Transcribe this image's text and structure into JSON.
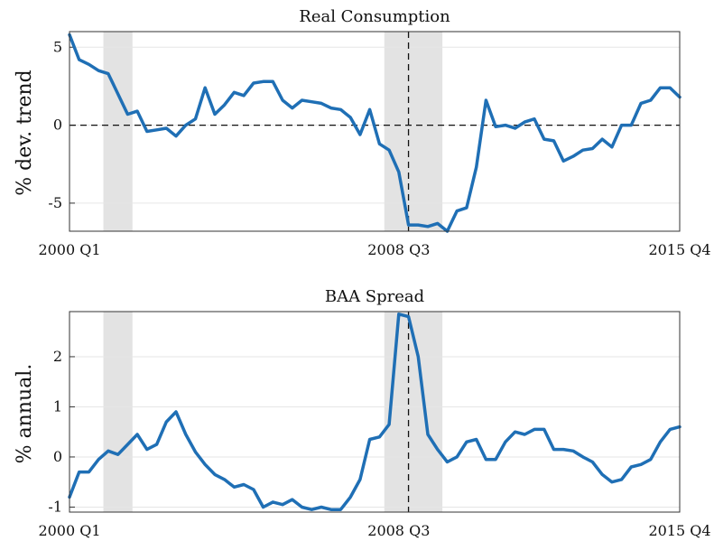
{
  "chart_data": [
    {
      "type": "line",
      "title": "Real Consumption",
      "ylabel": "% dev. trend",
      "xlabel": "",
      "x_tick_labels": [
        "2000 Q1",
        "2008 Q3",
        "2015 Q4"
      ],
      "x_tick_positions": [
        0,
        34,
        63
      ],
      "ylim": [
        -6.8,
        6.0
      ],
      "yticks": [
        -5,
        0,
        5
      ],
      "recession_bands": [
        [
          3.5,
          6.5
        ],
        [
          32.5,
          38.5
        ]
      ],
      "event_line": 35,
      "zero_line": true,
      "grid": "horizontal",
      "color": "#1f6fb5",
      "series": [
        {
          "x": [
            0,
            1,
            2,
            3,
            4,
            5,
            6,
            7,
            8,
            9,
            10,
            11,
            12,
            13,
            14,
            15,
            16,
            17,
            18,
            19,
            20,
            21,
            22,
            23,
            24,
            25,
            26,
            27,
            28,
            29,
            30,
            31,
            32,
            33,
            34,
            35,
            36,
            37,
            38,
            39,
            40,
            41,
            42,
            43,
            44,
            45,
            46,
            47,
            48,
            49,
            50,
            51,
            52,
            53,
            54,
            55,
            56,
            57,
            58,
            59,
            60,
            61,
            62,
            63
          ],
          "values": [
            5.8,
            4.2,
            3.9,
            3.5,
            3.3,
            2.0,
            0.7,
            0.9,
            -0.4,
            -0.3,
            -0.2,
            -0.7,
            0.0,
            0.4,
            2.4,
            0.7,
            1.3,
            2.1,
            1.9,
            2.7,
            2.8,
            2.8,
            1.6,
            1.1,
            1.6,
            1.5,
            1.4,
            1.1,
            1.0,
            0.5,
            -0.6,
            1.0,
            -1.2,
            -1.6,
            -3.0,
            -6.4,
            -6.4,
            -6.5,
            -6.3,
            -6.8,
            -5.5,
            -5.3,
            -2.7,
            1.6,
            -0.1,
            0.0,
            -0.2,
            0.2,
            0.4,
            -0.9,
            -1.0,
            -2.3,
            -2.0,
            -1.6,
            -1.5,
            -0.9,
            -1.4,
            0.0,
            0.0,
            1.4,
            1.6,
            2.4,
            2.4,
            1.8
          ]
        }
      ]
    },
    {
      "type": "line",
      "title": "BAA Spread",
      "ylabel": "% annual.",
      "xlabel": "",
      "x_tick_labels": [
        "2000 Q1",
        "2008 Q3",
        "2015 Q4"
      ],
      "x_tick_positions": [
        0,
        34,
        63
      ],
      "ylim": [
        -1.1,
        2.9
      ],
      "yticks": [
        -1,
        0,
        1,
        2
      ],
      "recession_bands": [
        [
          3.5,
          6.5
        ],
        [
          32.5,
          38.5
        ]
      ],
      "event_line": 35,
      "zero_line": false,
      "grid": "horizontal",
      "color": "#1f6fb5",
      "series": [
        {
          "x": [
            0,
            1,
            2,
            3,
            4,
            5,
            6,
            7,
            8,
            9,
            10,
            11,
            12,
            13,
            14,
            15,
            16,
            17,
            18,
            19,
            20,
            21,
            22,
            23,
            24,
            25,
            26,
            27,
            28,
            29,
            30,
            31,
            32,
            33,
            34,
            35,
            36,
            37,
            38,
            39,
            40,
            41,
            42,
            43,
            44,
            45,
            46,
            47,
            48,
            49,
            50,
            51,
            52,
            53,
            54,
            55,
            56,
            57,
            58,
            59,
            60,
            61,
            62,
            63
          ],
          "values": [
            -0.8,
            -0.3,
            -0.3,
            -0.05,
            0.12,
            0.05,
            0.25,
            0.45,
            0.15,
            0.25,
            0.7,
            0.9,
            0.45,
            0.1,
            -0.15,
            -0.35,
            -0.45,
            -0.6,
            -0.55,
            -0.65,
            -1.0,
            -0.9,
            -0.95,
            -0.85,
            -1.0,
            -1.05,
            -1.0,
            -1.05,
            -1.05,
            -0.8,
            -0.45,
            0.35,
            0.4,
            0.65,
            2.85,
            2.8,
            2.0,
            0.45,
            0.15,
            -0.1,
            0.0,
            0.3,
            0.35,
            -0.05,
            -0.05,
            0.3,
            0.5,
            0.45,
            0.55,
            0.55,
            0.15,
            0.15,
            0.12,
            0.0,
            -0.1,
            -0.35,
            -0.5,
            -0.45,
            -0.2,
            -0.15,
            -0.05,
            0.3,
            0.55,
            0.6
          ]
        }
      ]
    }
  ]
}
